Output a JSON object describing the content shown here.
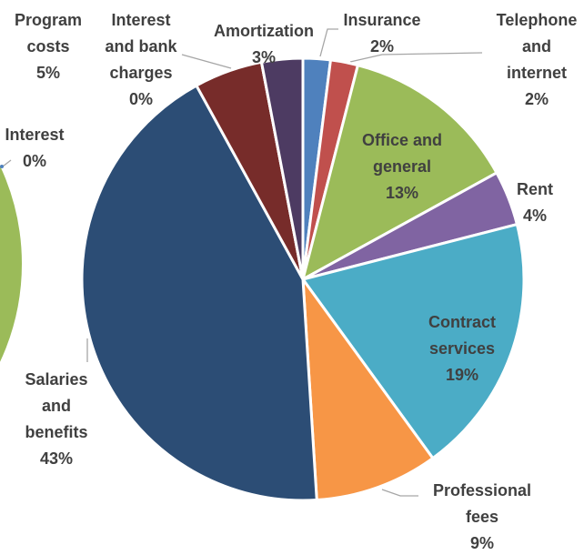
{
  "chart_data": [
    {
      "type": "pie",
      "categories": [
        "Insurance",
        "Telephone and internet",
        "Office and general",
        "Rent",
        "Contract services",
        "Professional fees",
        "Salaries and benefits",
        "Program costs",
        "Interest and bank charges",
        "Amortization"
      ],
      "values": [
        2,
        2,
        13,
        4,
        19,
        9,
        43,
        5,
        0,
        3
      ],
      "value_labels": [
        "2%",
        "2%",
        "13%",
        "4%",
        "19%",
        "9%",
        "43%",
        "5%",
        "0%",
        "3%"
      ],
      "colors": [
        "#4f81bd",
        "#c0504d",
        "#9bbb59",
        "#8064a2",
        "#4bacc6",
        "#f79646",
        "#2c4d75",
        "#772c2a",
        "#8c8c8c",
        "#4d3b62"
      ]
    },
    {
      "type": "pie",
      "categories": [
        "Interest"
      ],
      "values": [
        0
      ],
      "value_labels": [
        "0%"
      ],
      "colors": [
        "#4f81bd"
      ]
    }
  ]
}
